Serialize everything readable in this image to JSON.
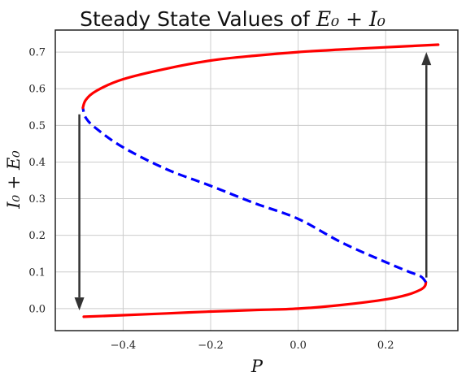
{
  "chart_data": {
    "type": "line",
    "title": "Steady State Values of E₀ + I₀",
    "title_text": "Steady State Values of ",
    "title_math": "E₀ + I₀",
    "xlabel": "P",
    "ylabel": "I₀ + E₀",
    "xlim": [
      -0.555,
      0.365
    ],
    "ylim": [
      -0.06,
      0.76
    ],
    "x_ticks": [
      -0.4,
      -0.2,
      0.0,
      0.2
    ],
    "x_tick_labels": [
      "−0.4",
      "−0.2",
      "0.0",
      "0.2"
    ],
    "y_ticks": [
      0.0,
      0.1,
      0.2,
      0.3,
      0.4,
      0.5,
      0.6,
      0.7
    ],
    "y_tick_labels": [
      "0.0",
      "0.1",
      "0.2",
      "0.3",
      "0.4",
      "0.5",
      "0.6",
      "0.7"
    ],
    "grid": true,
    "series": [
      {
        "style": "solid",
        "color": "#ff0000",
        "points": [
          [
            -0.49,
            -0.022
          ],
          [
            -0.4,
            -0.018
          ],
          [
            -0.3,
            -0.013
          ],
          [
            -0.2,
            -0.008
          ],
          [
            -0.1,
            -0.004
          ],
          [
            0.0,
            0.0
          ],
          [
            0.1,
            0.01
          ],
          [
            0.2,
            0.025
          ],
          [
            0.25,
            0.038
          ],
          [
            0.28,
            0.052
          ],
          [
            0.29,
            0.062
          ],
          [
            0.292,
            0.072
          ]
        ]
      },
      {
        "style": "dashed",
        "color": "#0000ff",
        "points": [
          [
            0.292,
            0.072
          ],
          [
            0.28,
            0.088
          ],
          [
            0.25,
            0.102
          ],
          [
            0.2,
            0.127
          ],
          [
            0.1,
            0.18
          ],
          [
            0.0,
            0.245
          ],
          [
            -0.1,
            0.288
          ],
          [
            -0.2,
            0.335
          ],
          [
            -0.3,
            0.38
          ],
          [
            -0.4,
            0.44
          ],
          [
            -0.46,
            0.49
          ],
          [
            -0.485,
            0.52
          ],
          [
            -0.492,
            0.548
          ]
        ]
      },
      {
        "style": "solid",
        "color": "#ff0000",
        "points": [
          [
            -0.492,
            0.548
          ],
          [
            -0.485,
            0.57
          ],
          [
            -0.46,
            0.595
          ],
          [
            -0.4,
            0.626
          ],
          [
            -0.3,
            0.655
          ],
          [
            -0.2,
            0.677
          ],
          [
            -0.1,
            0.69
          ],
          [
            0.0,
            0.7
          ],
          [
            0.1,
            0.707
          ],
          [
            0.2,
            0.713
          ],
          [
            0.32,
            0.72
          ]
        ]
      }
    ],
    "arrows": [
      {
        "from": [
          -0.5,
          0.53
        ],
        "to": [
          -0.5,
          -0.005
        ]
      },
      {
        "from": [
          0.293,
          0.085
        ],
        "to": [
          0.293,
          0.7
        ]
      }
    ],
    "colors": {
      "stable": "#ff0000",
      "unstable": "#0000ff",
      "arrow": "#333333",
      "grid": "#cccccc",
      "frame": "#222222"
    }
  }
}
